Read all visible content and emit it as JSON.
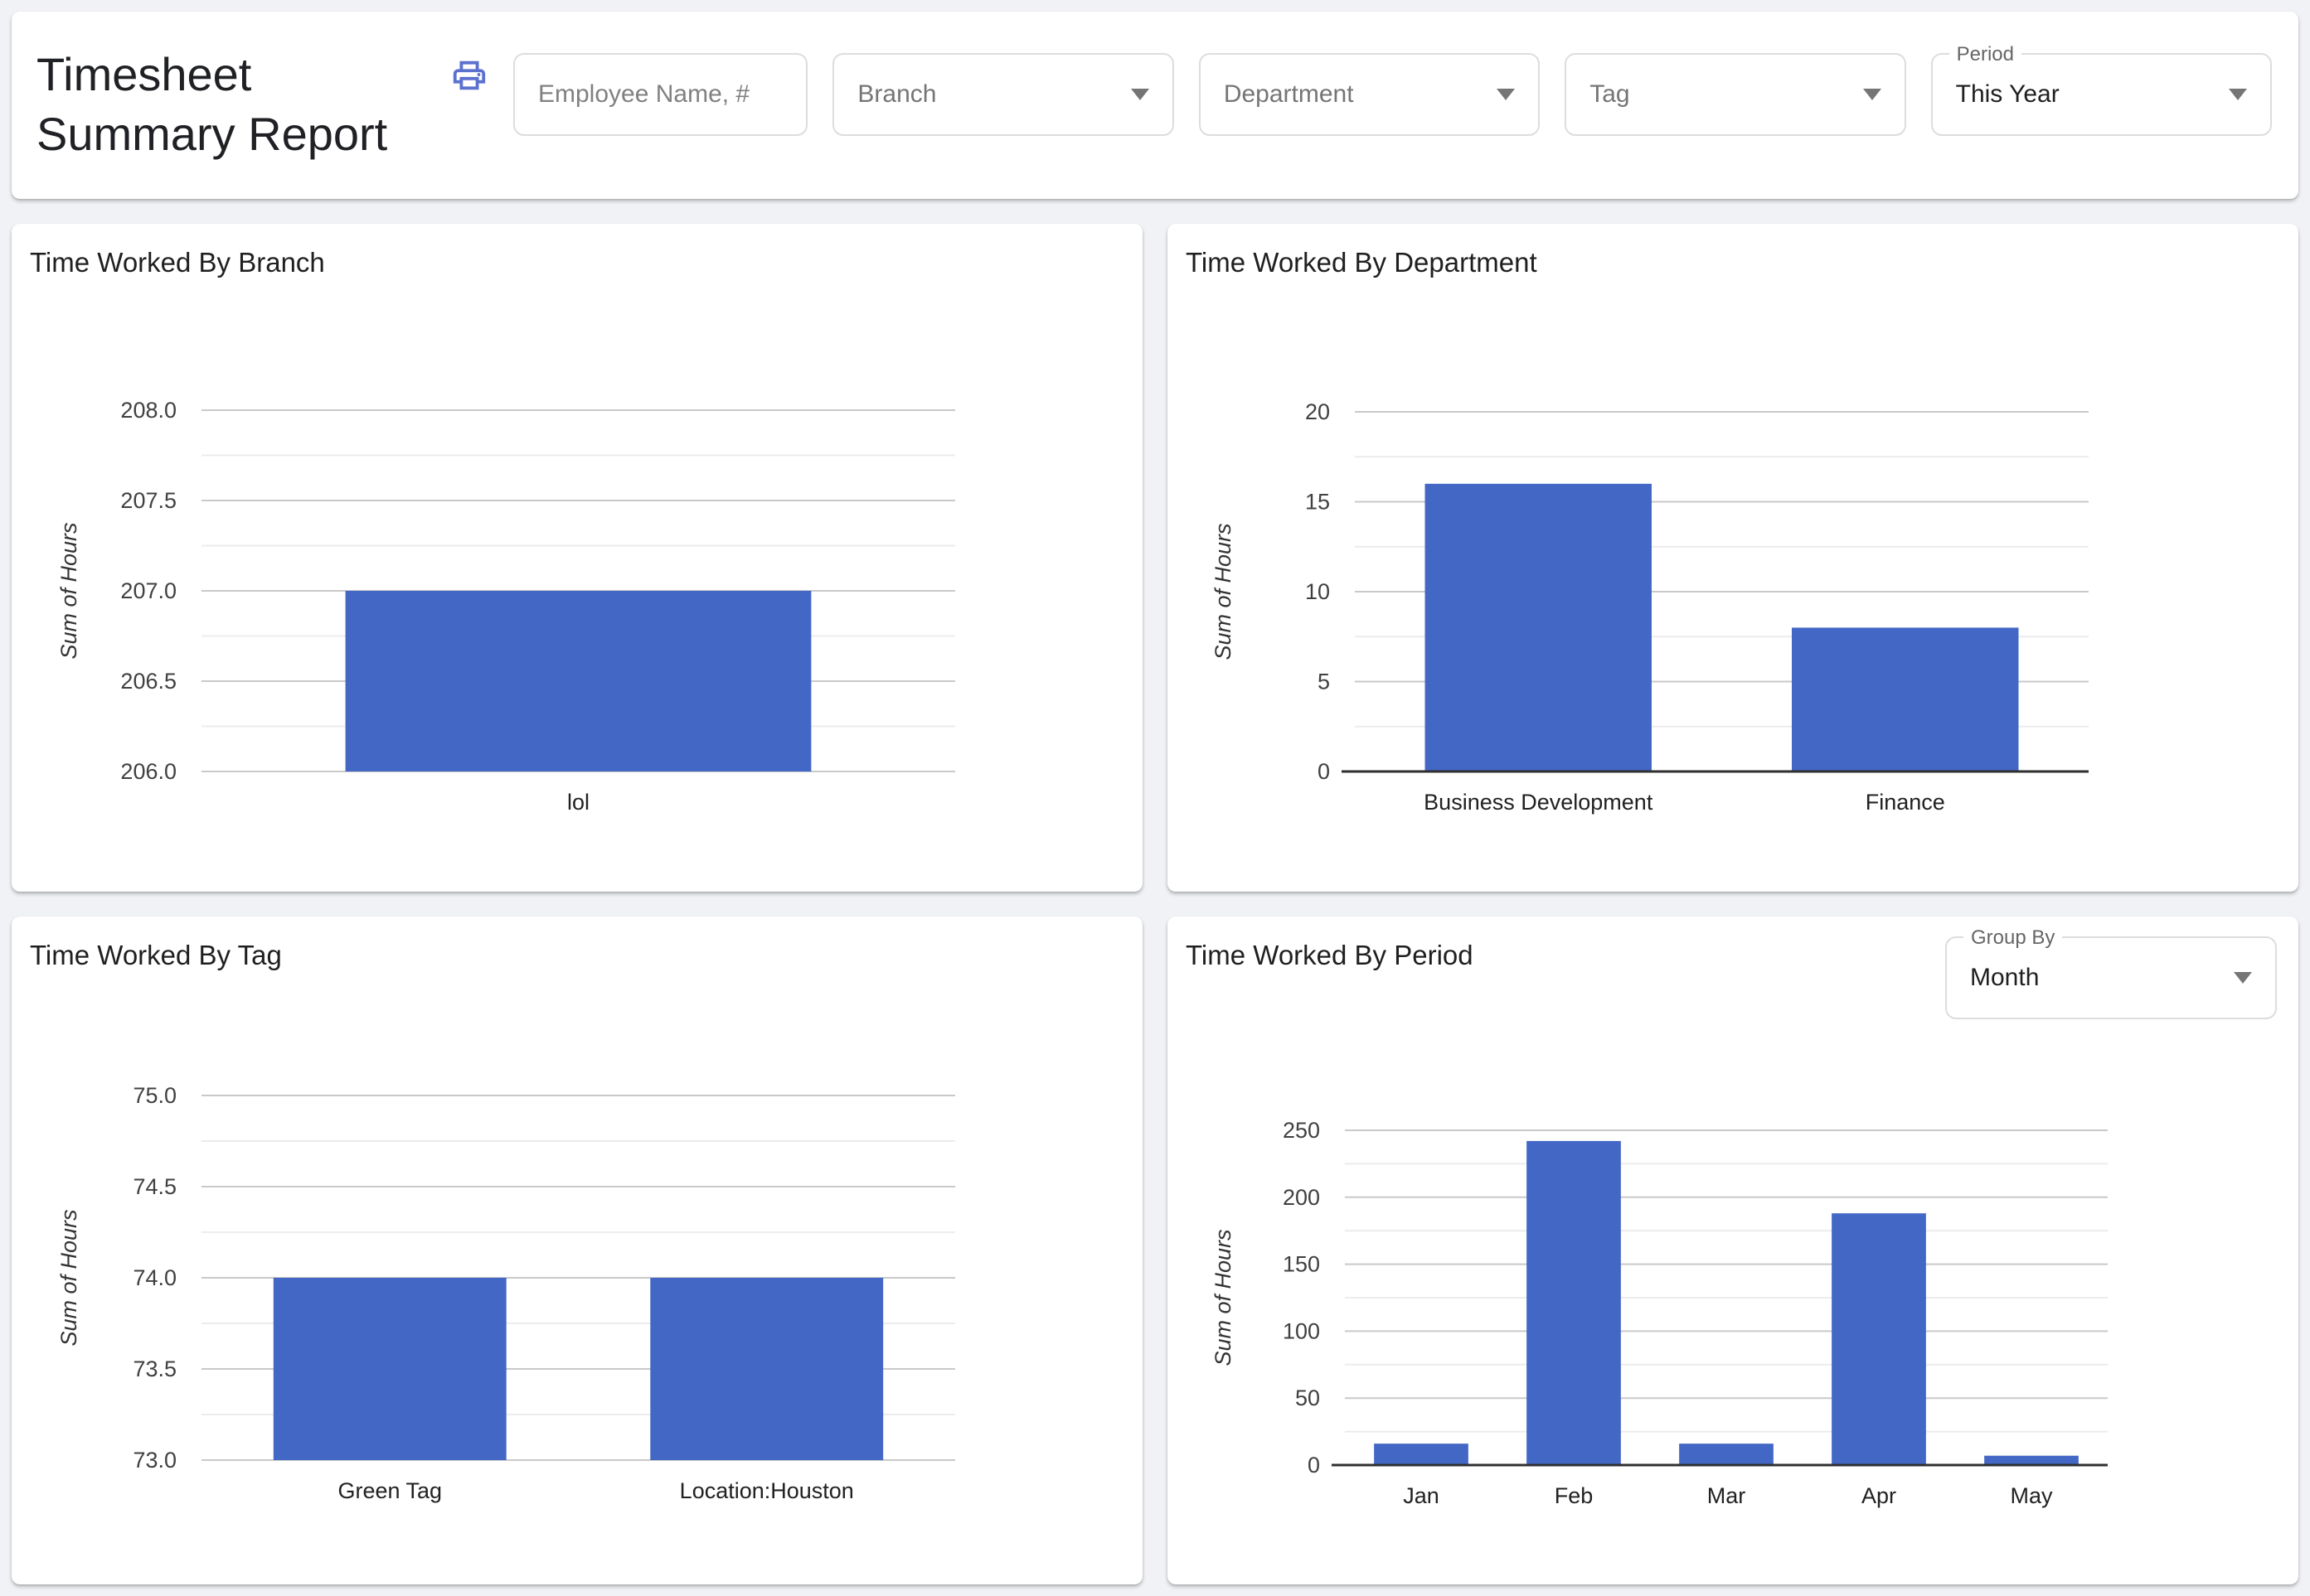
{
  "colors": {
    "bar": "#4267C5",
    "print_icon": "#5B71CE",
    "grid_major": "#C9C9C9",
    "grid_minor": "#ECECEC",
    "baseline": "#2F2F2F",
    "page_bg": "#F1F2F5"
  },
  "header": {
    "title": "Timesheet Summary Report",
    "filters": {
      "employee_placeholder": "Employee Name, #",
      "branch": "Branch",
      "department": "Department",
      "tag": "Tag",
      "period_label": "Period",
      "period_value": "This Year"
    }
  },
  "chart_data": [
    {
      "type": "bar",
      "title": "Time Worked By Branch",
      "ylabel": "Sum of Hours",
      "xlabel": "",
      "categories": [
        "lol"
      ],
      "values": [
        207
      ],
      "ylim": [
        206,
        208
      ],
      "minor_step": 0.25,
      "grid": true,
      "legend": "none",
      "yticks": [
        {
          "value": 208,
          "label": "208.0"
        },
        {
          "value": 207.5,
          "label": "207.5"
        },
        {
          "value": 207,
          "label": "207.0"
        },
        {
          "value": 206.5,
          "label": "206.5"
        },
        {
          "value": 206,
          "label": "206.0"
        }
      ]
    },
    {
      "type": "bar",
      "title": "Time Worked By Department",
      "ylabel": "Sum of Hours",
      "xlabel": "",
      "categories": [
        "Business Development",
        "Finance"
      ],
      "values": [
        16,
        8
      ],
      "ylim": [
        0,
        20
      ],
      "minor_step": 2.5,
      "grid": true,
      "legend": "none",
      "yticks": [
        {
          "value": 20,
          "label": "20"
        },
        {
          "value": 15,
          "label": "15"
        },
        {
          "value": 10,
          "label": "10"
        },
        {
          "value": 5,
          "label": "5"
        },
        {
          "value": 0,
          "label": "0"
        }
      ]
    },
    {
      "type": "bar",
      "title": "Time Worked By Tag",
      "ylabel": "Sum of Hours",
      "xlabel": "",
      "categories": [
        "Green Tag",
        "Location:Houston"
      ],
      "values": [
        74,
        74
      ],
      "ylim": [
        73,
        75
      ],
      "minor_step": 0.25,
      "grid": true,
      "legend": "none",
      "yticks": [
        {
          "value": 75,
          "label": "75.0"
        },
        {
          "value": 74.5,
          "label": "74.5"
        },
        {
          "value": 74,
          "label": "74.0"
        },
        {
          "value": 73.5,
          "label": "73.5"
        },
        {
          "value": 73,
          "label": "73.0"
        }
      ]
    },
    {
      "type": "bar",
      "title": "Time Worked By Period",
      "ylabel": "Sum of Hours",
      "xlabel": "",
      "categories": [
        "Jan",
        "Feb",
        "Mar",
        "Apr",
        "May"
      ],
      "values": [
        16,
        242,
        16,
        188,
        7
      ],
      "ylim": [
        0,
        250
      ],
      "minor_step": 25,
      "grid": true,
      "legend": "none",
      "group_by_label": "Group By",
      "group_by_value": "Month",
      "yticks": [
        {
          "value": 250,
          "label": "250"
        },
        {
          "value": 200,
          "label": "200"
        },
        {
          "value": 150,
          "label": "150"
        },
        {
          "value": 100,
          "label": "100"
        },
        {
          "value": 50,
          "label": "50"
        },
        {
          "value": 0,
          "label": "0"
        }
      ]
    }
  ]
}
